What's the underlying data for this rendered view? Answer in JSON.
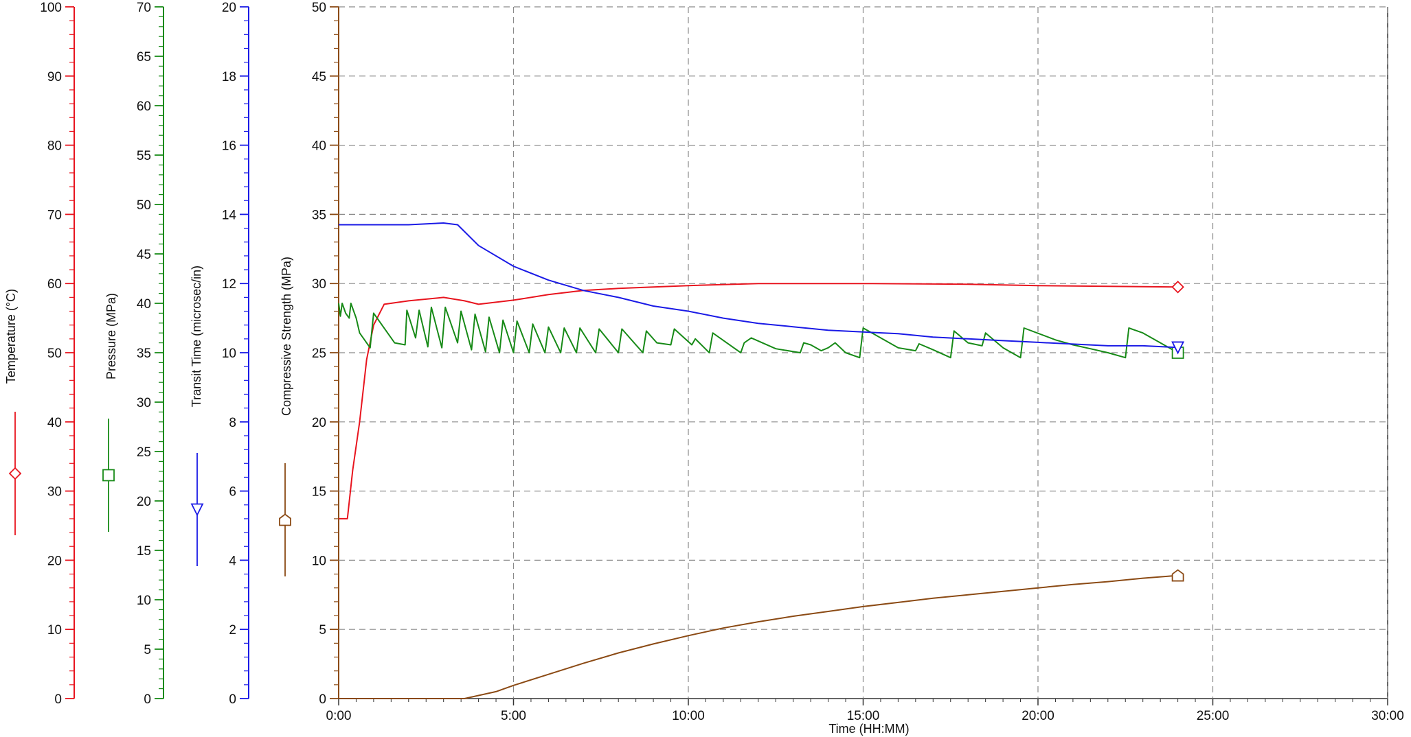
{
  "chart_data": {
    "type": "line",
    "title": "",
    "xlabel": "Time (HH:MM)",
    "xlim": [
      0,
      30
    ],
    "x_tick_labels": [
      "0:00",
      "5:00",
      "10:00",
      "15:00",
      "20:00",
      "25:00",
      "30:00"
    ],
    "grid": true,
    "axes": [
      {
        "id": "temperature",
        "label": "Temperature (°C)",
        "color": "#e8141e",
        "marker": "diamond",
        "min": 0,
        "max": 100,
        "tick_labels": [
          "0",
          "10",
          "20",
          "30",
          "40",
          "50",
          "60",
          "70",
          "80",
          "90",
          "100"
        ]
      },
      {
        "id": "pressure",
        "label": "Pressure (MPa)",
        "color": "#178a17",
        "marker": "square",
        "min": 0,
        "max": 70,
        "tick_labels": [
          "0",
          "5",
          "10",
          "15",
          "20",
          "25",
          "30",
          "35",
          "40",
          "45",
          "50",
          "55",
          "60",
          "65",
          "70"
        ]
      },
      {
        "id": "transit",
        "label": "Transit Time (microsec/in)",
        "color": "#1a1ae6",
        "marker": "triangle-down",
        "min": 0,
        "max": 20,
        "tick_labels": [
          "0",
          "2",
          "4",
          "6",
          "8",
          "10",
          "12",
          "14",
          "16",
          "18",
          "20"
        ]
      },
      {
        "id": "strength",
        "label": "Compressive Strength (MPa)",
        "color": "#8b4a14",
        "marker": "pentagon",
        "min": 0,
        "max": 50,
        "tick_labels": [
          "0",
          "5",
          "10",
          "15",
          "20",
          "25",
          "30",
          "35",
          "40",
          "45",
          "50"
        ]
      }
    ],
    "series": [
      {
        "name": "Temperature (°C)",
        "axis": "temperature",
        "color": "#e8141e",
        "points": [
          [
            0,
            26
          ],
          [
            0.25,
            26
          ],
          [
            0.4,
            33
          ],
          [
            0.6,
            40
          ],
          [
            0.8,
            49
          ],
          [
            1.0,
            54
          ],
          [
            1.3,
            57
          ],
          [
            2.0,
            57.5
          ],
          [
            3.0,
            58
          ],
          [
            3.6,
            57.5
          ],
          [
            4.0,
            57
          ],
          [
            5.0,
            57.6
          ],
          [
            6.0,
            58.4
          ],
          [
            7.0,
            59
          ],
          [
            8.0,
            59.3
          ],
          [
            10.0,
            59.7
          ],
          [
            12.0,
            60
          ],
          [
            15.0,
            60
          ],
          [
            18.0,
            59.9
          ],
          [
            20.0,
            59.7
          ],
          [
            24.0,
            59.5
          ]
        ]
      },
      {
        "name": "Pressure (MPa)",
        "axis": "pressure",
        "color": "#178a17",
        "points": [
          [
            0,
            40
          ],
          [
            0.05,
            38.7
          ],
          [
            0.1,
            40
          ],
          [
            0.2,
            39
          ],
          [
            0.3,
            38.5
          ],
          [
            0.35,
            40
          ],
          [
            0.5,
            38.5
          ],
          [
            0.6,
            37
          ],
          [
            0.9,
            35.5
          ],
          [
            1.0,
            39
          ],
          [
            1.6,
            36
          ],
          [
            1.9,
            35.8
          ],
          [
            1.95,
            39.3
          ],
          [
            2.2,
            36.5
          ],
          [
            2.3,
            39.3
          ],
          [
            2.55,
            35.6
          ],
          [
            2.65,
            39.6
          ],
          [
            2.95,
            35.5
          ],
          [
            3.05,
            39.6
          ],
          [
            3.4,
            36
          ],
          [
            3.5,
            39.2
          ],
          [
            3.8,
            35.3
          ],
          [
            3.9,
            38.9
          ],
          [
            4.2,
            35.1
          ],
          [
            4.3,
            38.6
          ],
          [
            4.6,
            35
          ],
          [
            4.7,
            38.3
          ],
          [
            5.0,
            35
          ],
          [
            5.1,
            38.2
          ],
          [
            5.45,
            35
          ],
          [
            5.55,
            37.9
          ],
          [
            5.9,
            35
          ],
          [
            6.0,
            37.6
          ],
          [
            6.35,
            35
          ],
          [
            6.45,
            37.5
          ],
          [
            6.8,
            35
          ],
          [
            6.9,
            37.5
          ],
          [
            7.35,
            35
          ],
          [
            7.45,
            37.4
          ],
          [
            8.0,
            35
          ],
          [
            8.1,
            37.4
          ],
          [
            8.7,
            35
          ],
          [
            8.8,
            37.2
          ],
          [
            9.1,
            36
          ],
          [
            9.5,
            35.8
          ],
          [
            9.6,
            37.4
          ],
          [
            10.1,
            35.8
          ],
          [
            10.2,
            36.4
          ],
          [
            10.6,
            35
          ],
          [
            10.7,
            37
          ],
          [
            11.5,
            35
          ],
          [
            11.6,
            36
          ],
          [
            11.8,
            36.5
          ],
          [
            12.5,
            35.4
          ],
          [
            13.2,
            35
          ],
          [
            13.3,
            36
          ],
          [
            13.5,
            35.8
          ],
          [
            13.8,
            35.2
          ],
          [
            14.0,
            35.5
          ],
          [
            14.2,
            36
          ],
          [
            14.5,
            35
          ],
          [
            14.9,
            34.5
          ],
          [
            15.0,
            37.5
          ],
          [
            15.5,
            36.5
          ],
          [
            16.0,
            35.5
          ],
          [
            16.5,
            35.2
          ],
          [
            16.6,
            35.9
          ],
          [
            17.0,
            35.3
          ],
          [
            17.5,
            34.5
          ],
          [
            17.6,
            37.2
          ],
          [
            18.0,
            36
          ],
          [
            18.4,
            35.7
          ],
          [
            18.5,
            37
          ],
          [
            19.0,
            35.5
          ],
          [
            19.5,
            34.5
          ],
          [
            19.6,
            37.5
          ],
          [
            20.5,
            36.3
          ],
          [
            21.0,
            35.8
          ],
          [
            21.5,
            35.4
          ],
          [
            22.0,
            35
          ],
          [
            22.5,
            34.5
          ],
          [
            22.6,
            37.5
          ],
          [
            23.0,
            37
          ],
          [
            23.5,
            36
          ],
          [
            24.0,
            35
          ]
        ]
      },
      {
        "name": "Transit Time (microsec/in)",
        "axis": "transit",
        "color": "#1a1ae6",
        "points": [
          [
            0,
            13.7
          ],
          [
            1.0,
            13.7
          ],
          [
            2.0,
            13.7
          ],
          [
            3.0,
            13.75
          ],
          [
            3.4,
            13.7
          ],
          [
            4.0,
            13.1
          ],
          [
            5.0,
            12.5
          ],
          [
            6.0,
            12.1
          ],
          [
            7.0,
            11.8
          ],
          [
            8.0,
            11.6
          ],
          [
            9.0,
            11.35
          ],
          [
            10.0,
            11.2
          ],
          [
            11.0,
            11.0
          ],
          [
            12.0,
            10.85
          ],
          [
            13.0,
            10.75
          ],
          [
            14.0,
            10.65
          ],
          [
            15.0,
            10.6
          ],
          [
            16.0,
            10.55
          ],
          [
            17.0,
            10.45
          ],
          [
            18.0,
            10.4
          ],
          [
            19.0,
            10.35
          ],
          [
            20.0,
            10.3
          ],
          [
            21.0,
            10.25
          ],
          [
            22.0,
            10.2
          ],
          [
            23.0,
            10.2
          ],
          [
            24.0,
            10.15
          ]
        ]
      },
      {
        "name": "Compressive Strength (MPa)",
        "axis": "strength",
        "color": "#8b4a14",
        "points": [
          [
            0,
            0
          ],
          [
            3.6,
            0
          ],
          [
            4.5,
            0.5
          ],
          [
            5.0,
            0.95
          ],
          [
            6.0,
            1.75
          ],
          [
            7.0,
            2.55
          ],
          [
            8.0,
            3.3
          ],
          [
            9.0,
            3.95
          ],
          [
            10.0,
            4.55
          ],
          [
            11.0,
            5.1
          ],
          [
            12.0,
            5.55
          ],
          [
            13.0,
            5.95
          ],
          [
            14.0,
            6.3
          ],
          [
            15.0,
            6.65
          ],
          [
            16.0,
            6.95
          ],
          [
            17.0,
            7.25
          ],
          [
            18.0,
            7.5
          ],
          [
            19.0,
            7.75
          ],
          [
            20.0,
            8.0
          ],
          [
            21.0,
            8.25
          ],
          [
            22.0,
            8.45
          ],
          [
            23.0,
            8.7
          ],
          [
            24.0,
            8.9
          ]
        ]
      }
    ]
  }
}
